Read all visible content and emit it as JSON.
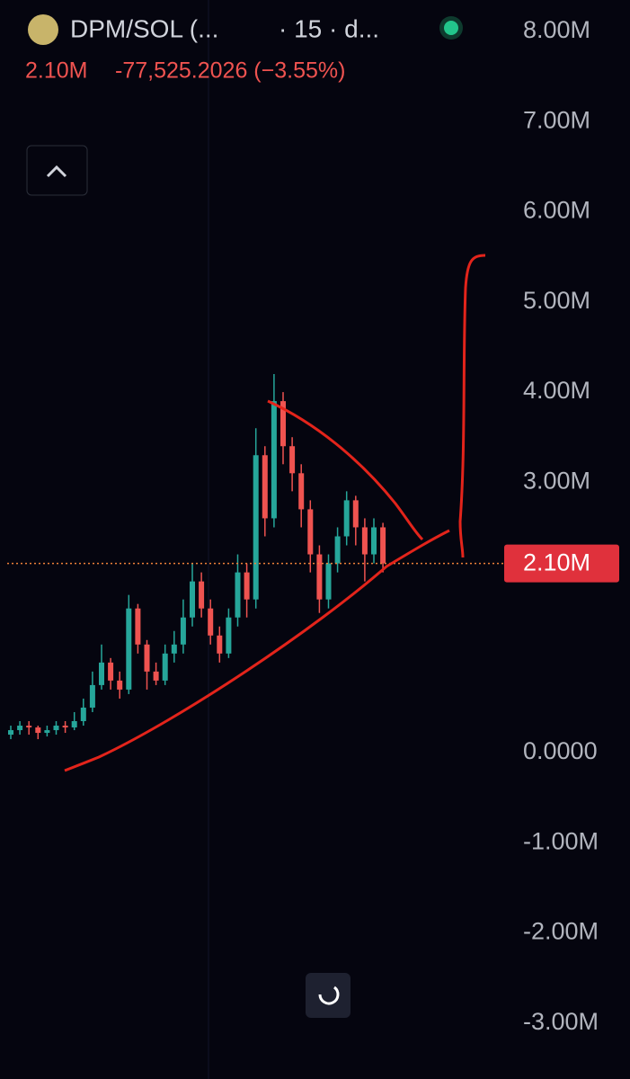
{
  "header": {
    "title": "DPM/SOL (...",
    "interval": "· 15 · d...",
    "price": "2.10M",
    "change": "-77,525.2026 (−3.55%)"
  },
  "chart_data": {
    "type": "candlestick",
    "ylim": [
      -3620000,
      8350000
    ],
    "yticks": [
      {
        "value": 8000000,
        "label": "8.00M"
      },
      {
        "value": 7000000,
        "label": "7.00M"
      },
      {
        "value": 6000000,
        "label": "6.00M"
      },
      {
        "value": 5000000,
        "label": "5.00M"
      },
      {
        "value": 4000000,
        "label": "4.00M"
      },
      {
        "value": 3000000,
        "label": "3.00M"
      },
      {
        "value": 0,
        "label": "0.0000"
      },
      {
        "value": -1000000,
        "label": "-1.00M"
      },
      {
        "value": -2000000,
        "label": "-2.00M"
      },
      {
        "value": -3000000,
        "label": "-3.00M"
      }
    ],
    "current_price": {
      "value": 2100000,
      "label": "2.10M"
    },
    "up_color": "#26a69a",
    "down_color": "#ef5350",
    "open": [
      200000,
      250000,
      300000,
      280000,
      220000,
      250000,
      300000,
      280000,
      350000,
      500000,
      750000,
      1000000,
      800000,
      700000,
      1600000,
      1200000,
      900000,
      800000,
      1100000,
      1200000,
      1500000,
      1900000,
      1600000,
      1300000,
      1100000,
      1500000,
      2000000,
      1700000,
      3300000,
      2600000,
      3900000,
      3400000,
      3100000,
      2700000,
      2200000,
      1700000,
      2100000,
      2400000,
      2800000,
      2500000,
      2200000,
      2500000
    ],
    "high": [
      300000,
      350000,
      350000,
      300000,
      300000,
      350000,
      350000,
      450000,
      600000,
      900000,
      1200000,
      1050000,
      900000,
      1750000,
      1650000,
      1250000,
      1000000,
      1200000,
      1350000,
      1700000,
      2100000,
      2000000,
      1700000,
      1400000,
      1600000,
      2200000,
      2100000,
      3600000,
      3400000,
      4200000,
      4000000,
      3500000,
      3200000,
      2800000,
      2300000,
      2200000,
      2500000,
      2900000,
      2850000,
      2600000,
      2600000,
      2550000
    ],
    "low": [
      150000,
      200000,
      200000,
      150000,
      180000,
      200000,
      220000,
      250000,
      300000,
      450000,
      700000,
      700000,
      600000,
      650000,
      1100000,
      700000,
      750000,
      750000,
      1000000,
      1100000,
      1400000,
      1500000,
      1200000,
      1000000,
      1050000,
      1400000,
      1500000,
      1600000,
      2400000,
      2500000,
      3200000,
      2900000,
      2500000,
      2000000,
      1550000,
      1600000,
      2000000,
      2300000,
      2300000,
      1900000,
      2100000,
      2000000
    ],
    "close": [
      250000,
      300000,
      280000,
      220000,
      250000,
      300000,
      280000,
      350000,
      500000,
      750000,
      1000000,
      800000,
      700000,
      1600000,
      1200000,
      900000,
      800000,
      1100000,
      1200000,
      1500000,
      1900000,
      1600000,
      1300000,
      1100000,
      1500000,
      2000000,
      1700000,
      3300000,
      2600000,
      3900000,
      3400000,
      3100000,
      2700000,
      2200000,
      1700000,
      2100000,
      2400000,
      2800000,
      2500000,
      2200000,
      2500000,
      2100000
    ]
  }
}
